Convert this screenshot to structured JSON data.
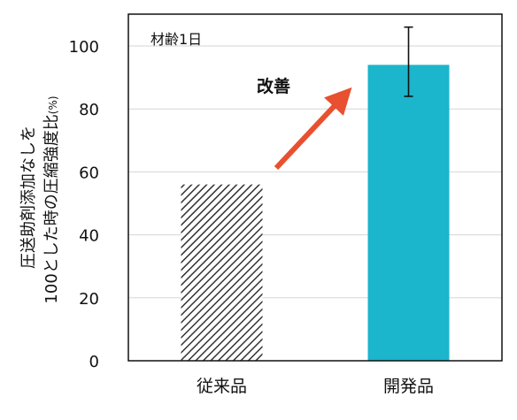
{
  "chart_data": {
    "type": "bar",
    "categories": [
      "従来品",
      "開発品"
    ],
    "values": [
      56,
      94
    ],
    "error_bars": [
      null,
      {
        "low": 84,
        "high": 106
      }
    ],
    "bar_styles": [
      "hatched",
      "solid"
    ],
    "ylim": [
      0,
      100
    ],
    "yticks": [
      0,
      20,
      40,
      60,
      80,
      100
    ],
    "ylabel_line1": "圧送助剤添加なしを",
    "ylabel_line2": "100とした時の圧縮強度比",
    "ylabel_unit": "(%)",
    "xlabel": "",
    "grid": true,
    "inset_label": "材齢1日",
    "annotation": "改善"
  },
  "colors": {
    "bar_solid": "#1bb5cc",
    "hatch": "#333333",
    "arrow": "#e8502f",
    "annotation_text": "#e8502f",
    "grid": "#d6d6d6",
    "axis": "#111111"
  }
}
